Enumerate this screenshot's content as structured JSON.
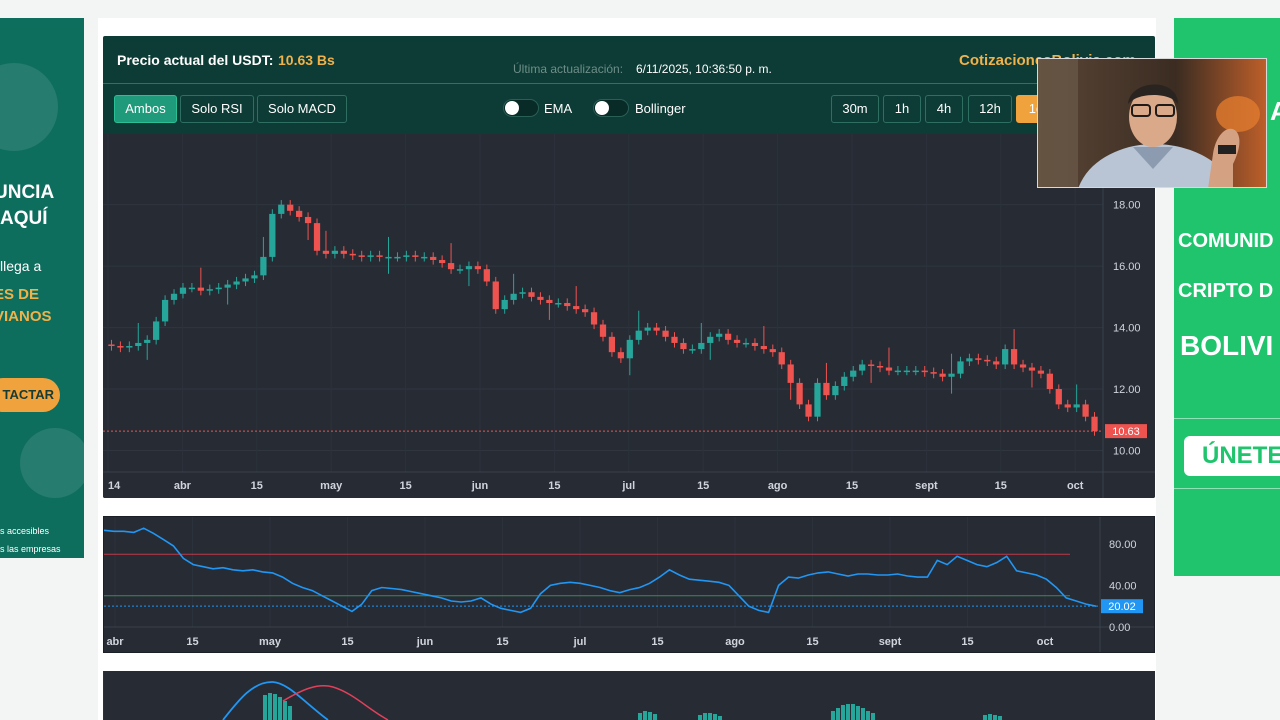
{
  "left_ad": {
    "headline_1": "UNCIA",
    "headline_2": "AQUÍ",
    "text_1": "llega a",
    "orange_1": "ES DE",
    "orange_2": "VIANOS",
    "button": "TACTAR",
    "small_1": "s accesibles",
    "small_2": "s las empresas"
  },
  "right_ad": {
    "letter": "A",
    "line_1": "COMUNID",
    "line_2": "CRIPTO D",
    "line_3": "BOLIVI",
    "button": "ÚNETE"
  },
  "header": {
    "price_label": "Precio actual del USDT:",
    "price_value": "10.63 Bs",
    "update_label": "Última actualización:",
    "update_value": "6/11/2025, 10:36:50 p. m.",
    "site": "CotizacionesBolivia.com"
  },
  "view_buttons": [
    "Ambos",
    "Solo RSI",
    "Solo MACD"
  ],
  "toggles": [
    "EMA",
    "Bollinger"
  ],
  "interval_buttons": [
    "30m",
    "1h",
    "4h",
    "12h",
    "1d"
  ],
  "colors": {
    "up": "#26a69a",
    "down": "#ef5350",
    "accent": "#f0a23c",
    "rsi_line": "#2196f3"
  },
  "chart_data": [
    {
      "type": "candlestick",
      "title": "",
      "x_ticks": [
        "14",
        "abr",
        "15",
        "may",
        "15",
        "jun",
        "15",
        "jul",
        "15",
        "ago",
        "15",
        "sept",
        "15",
        "oct"
      ],
      "y_ticks": [
        "10.00",
        "12.00",
        "14.00",
        "16.00",
        "18.00"
      ],
      "ylim": [
        9.3,
        20.3
      ],
      "last_price": 10.63,
      "last_price_label": "10.63",
      "close": [
        13.4,
        13.35,
        13.4,
        13.5,
        13.6,
        14.2,
        14.9,
        15.1,
        15.3,
        15.3,
        15.2,
        15.25,
        15.3,
        15.4,
        15.5,
        15.6,
        15.7,
        16.3,
        17.7,
        18.0,
        17.8,
        17.6,
        17.4,
        16.5,
        16.4,
        16.5,
        16.4,
        16.35,
        16.3,
        16.35,
        16.3,
        16.3,
        16.3,
        16.35,
        16.3,
        16.3,
        16.2,
        16.1,
        15.9,
        15.9,
        16.0,
        15.9,
        15.5,
        14.6,
        14.9,
        15.1,
        15.15,
        15.0,
        14.9,
        14.8,
        14.8,
        14.7,
        14.6,
        14.5,
        14.1,
        13.7,
        13.2,
        13.0,
        13.6,
        13.9,
        14.0,
        13.9,
        13.7,
        13.5,
        13.3,
        13.3,
        13.5,
        13.7,
        13.8,
        13.6,
        13.5,
        13.5,
        13.4,
        13.3,
        13.2,
        12.8,
        12.2,
        11.5,
        11.1,
        12.2,
        11.8,
        12.1,
        12.4,
        12.6,
        12.8,
        12.75,
        12.7,
        12.6,
        12.6,
        12.6,
        12.6,
        12.55,
        12.5,
        12.4,
        12.5,
        12.9,
        13.0,
        12.95,
        12.9,
        12.8,
        13.3,
        12.8,
        12.7,
        12.6,
        12.5,
        12.0,
        11.5,
        11.4,
        11.5,
        11.1,
        10.63
      ]
    },
    {
      "type": "line",
      "title": "",
      "x_ticks": [
        "abr",
        "15",
        "may",
        "15",
        "jun",
        "15",
        "jul",
        "15",
        "ago",
        "15",
        "sept",
        "15",
        "oct"
      ],
      "y_ticks": [
        "0.00",
        "40.00",
        "80.00"
      ],
      "ylim": [
        0,
        100
      ],
      "overbought": 70,
      "oversold": 30,
      "last_value": 20.02,
      "last_value_label": "20.02",
      "values": [
        93,
        92,
        92,
        91,
        95,
        90,
        84,
        78,
        66,
        60,
        58,
        56,
        57,
        55,
        54,
        55,
        53,
        52,
        48,
        42,
        38,
        35,
        30,
        25,
        20,
        15,
        22,
        35,
        38,
        37,
        36,
        34,
        32,
        30,
        28,
        25,
        24,
        25,
        28,
        22,
        18,
        16,
        14,
        18,
        32,
        40,
        42,
        43,
        42,
        40,
        38,
        35,
        33,
        36,
        38,
        42,
        48,
        55,
        50,
        46,
        45,
        44,
        43,
        40,
        30,
        20,
        16,
        14,
        40,
        48,
        47,
        50,
        52,
        53,
        51,
        49,
        51,
        51,
        50,
        50,
        51,
        49,
        48,
        48,
        64,
        60,
        68,
        64,
        60,
        58,
        62,
        68,
        54,
        52,
        50,
        46,
        38,
        28,
        25,
        22,
        20.02
      ]
    }
  ]
}
